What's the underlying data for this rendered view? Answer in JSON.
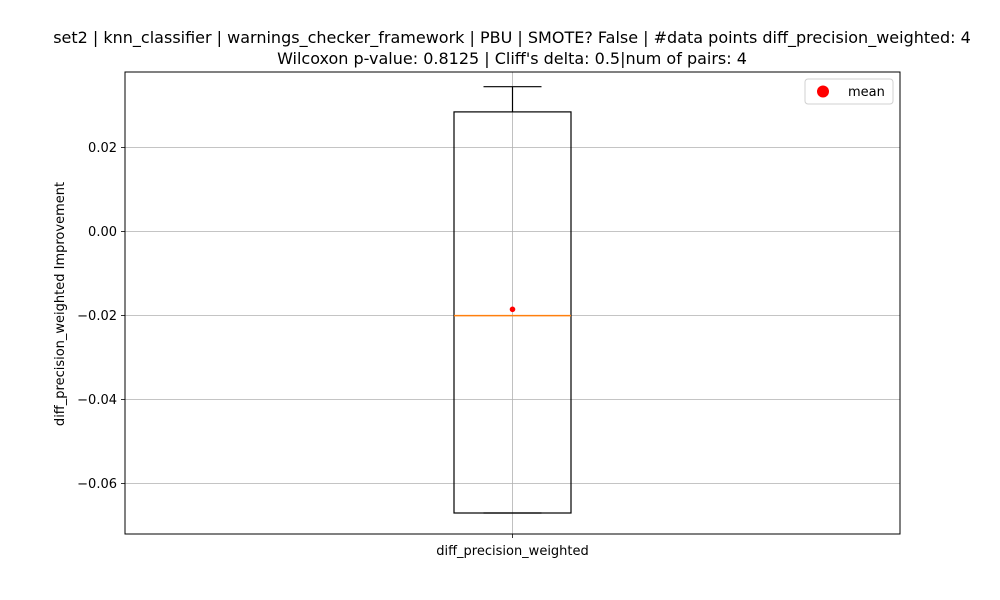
{
  "chart_data": {
    "type": "box",
    "title_line1": "set2 | knn_classifier | warnings_checker_framework | PBU | SMOTE? False | #data points diff_precision_weighted: 4",
    "title_line2": "Wilcoxon p-value: 0.8125 | Cliff's delta: 0.5|num of pairs: 4",
    "xlabel": "",
    "ylabel": "diff_precision_weighted Improvement",
    "categories": [
      "diff_precision_weighted"
    ],
    "ylim": [
      -0.072,
      0.038
    ],
    "yticks": [
      0.02,
      0.0,
      -0.02,
      -0.04,
      -0.06
    ],
    "ytick_labels": [
      "0.02",
      "0.00",
      "−0.02",
      "−0.04",
      "−0.06"
    ],
    "grid": true,
    "legend": {
      "position": "top-right",
      "entries": [
        {
          "label": "mean",
          "color": "#ff0000",
          "marker": "circle"
        }
      ]
    },
    "boxes": [
      {
        "name": "diff_precision_weighted",
        "whisker_low": -0.067,
        "q1": -0.067,
        "median": -0.02,
        "q3": 0.0285,
        "whisker_high": 0.0345,
        "mean": -0.0185
      }
    ],
    "colors": {
      "box": "#000000",
      "median": "#ff7f0e",
      "mean": "#ff0000",
      "grid": "#b0b0b0"
    }
  }
}
